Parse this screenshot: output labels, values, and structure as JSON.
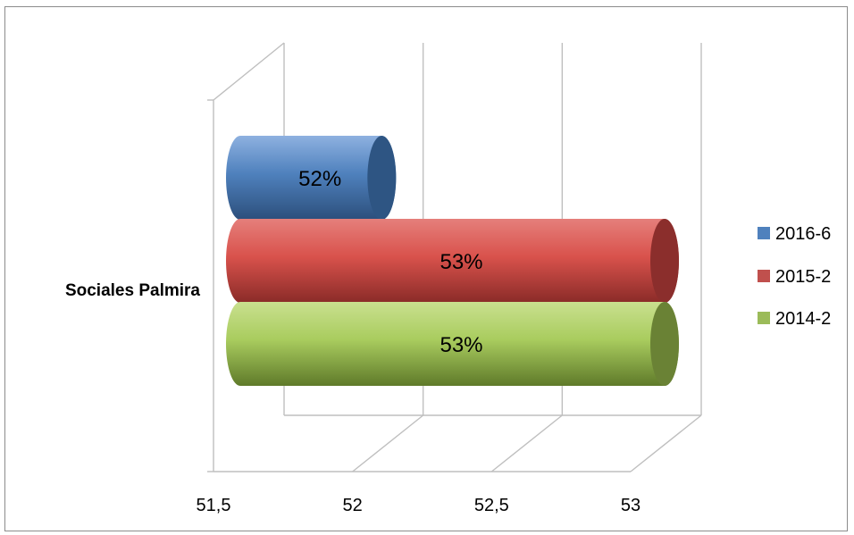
{
  "chart_data": {
    "type": "bar",
    "orientation": "horizontal",
    "style": "3d-cylinder",
    "categories": [
      "Sociales Palmira"
    ],
    "series": [
      {
        "name": "2016-6",
        "values": [
          52
        ],
        "data_label": "52%",
        "color": "#4F81BD"
      },
      {
        "name": "2015-2",
        "values": [
          53
        ],
        "data_label": "53%",
        "color": "#C0504D"
      },
      {
        "name": "2014-2",
        "values": [
          53
        ],
        "data_label": "53%",
        "color": "#9BBB59"
      }
    ],
    "x_ticks": [
      "51,5",
      "52",
      "52,5",
      "53"
    ],
    "xlim": [
      51.5,
      53
    ],
    "grid": true,
    "legend_position": "right"
  }
}
